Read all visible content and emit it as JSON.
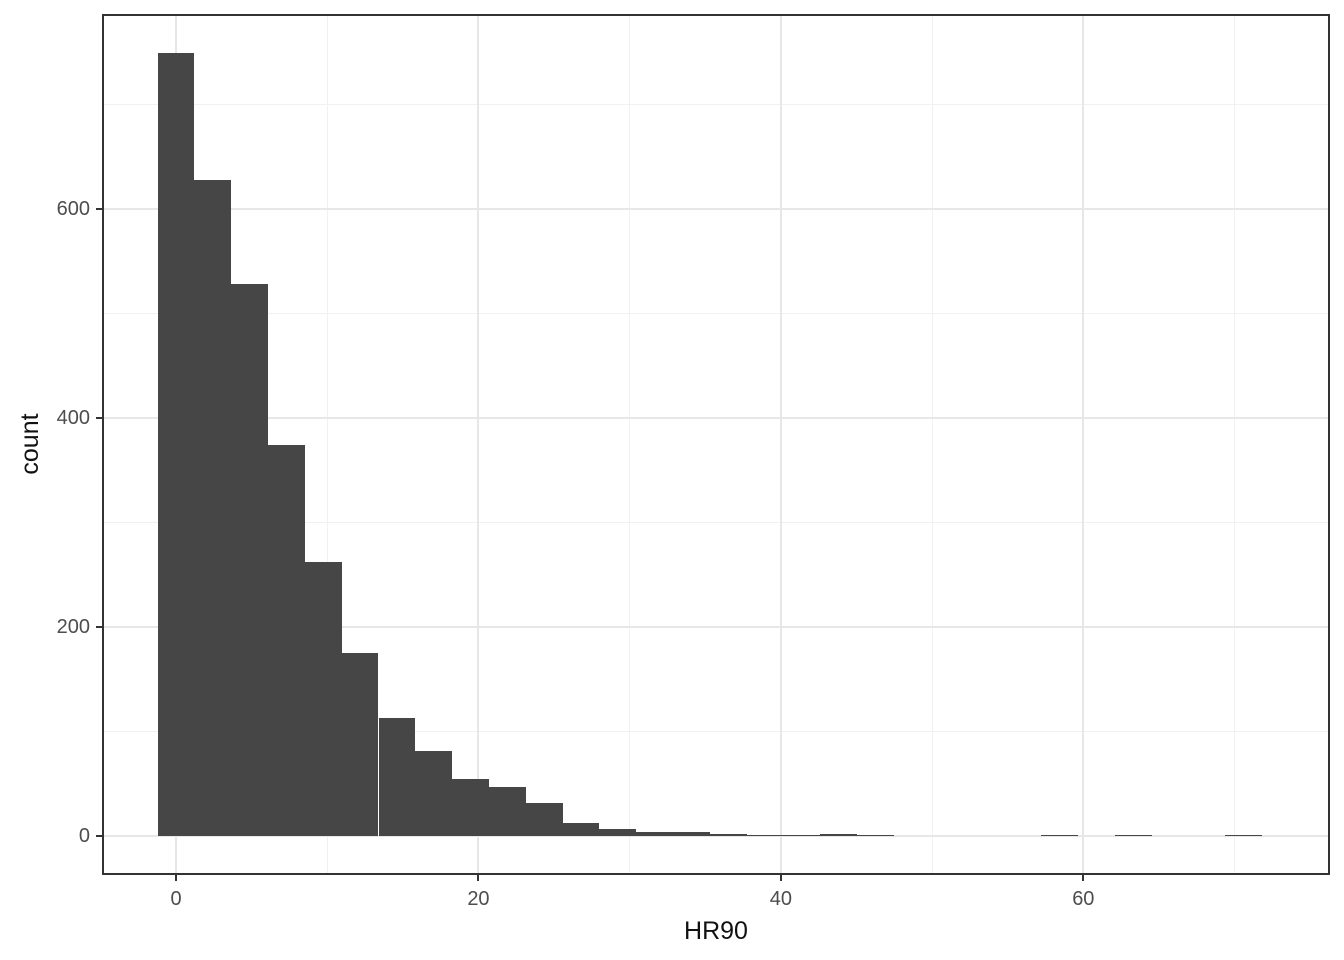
{
  "figure": {
    "background": "#ffffff"
  },
  "chart_data": {
    "type": "bar",
    "subtype": "histogram",
    "title": "",
    "xlabel": "HR90",
    "ylabel": "count",
    "binwidth": 2.4345,
    "bin_centers": [
      0,
      2.43,
      4.87,
      7.3,
      9.74,
      12.17,
      14.61,
      17.04,
      19.48,
      21.91,
      24.35,
      26.78,
      29.21,
      31.65,
      34.08,
      36.52,
      38.95,
      41.39,
      43.82,
      46.26,
      48.69,
      51.12,
      53.56,
      55.99,
      58.43,
      60.86,
      63.3,
      65.73,
      68.17,
      70.6
    ],
    "counts": [
      749,
      628,
      528,
      374,
      262,
      175,
      113,
      81,
      55,
      47,
      32,
      12,
      7,
      4,
      4,
      2,
      1,
      1,
      2,
      1,
      0,
      0,
      0,
      0,
      1,
      0,
      1,
      0,
      0,
      1
    ],
    "x_ticks": [
      0,
      20,
      40,
      60
    ],
    "y_ticks": [
      0,
      200,
      400,
      600
    ],
    "x_minor_gridlines": [
      10,
      30,
      50,
      70
    ],
    "y_minor_gridlines": [
      100,
      300,
      500,
      700
    ],
    "xlim": [
      -4.9,
      76.3
    ],
    "ylim": [
      -37.4,
      786.4
    ],
    "grid": "major and minor, light gray on white",
    "legend_position": "none",
    "colors": {
      "bar_fill": "#464646",
      "panel_border": "#333333",
      "major_grid": "#e7e7e7",
      "minor_grid": "#f1f1f1",
      "tick_label": "#4d4d4d",
      "axis_title": "#111111"
    }
  }
}
